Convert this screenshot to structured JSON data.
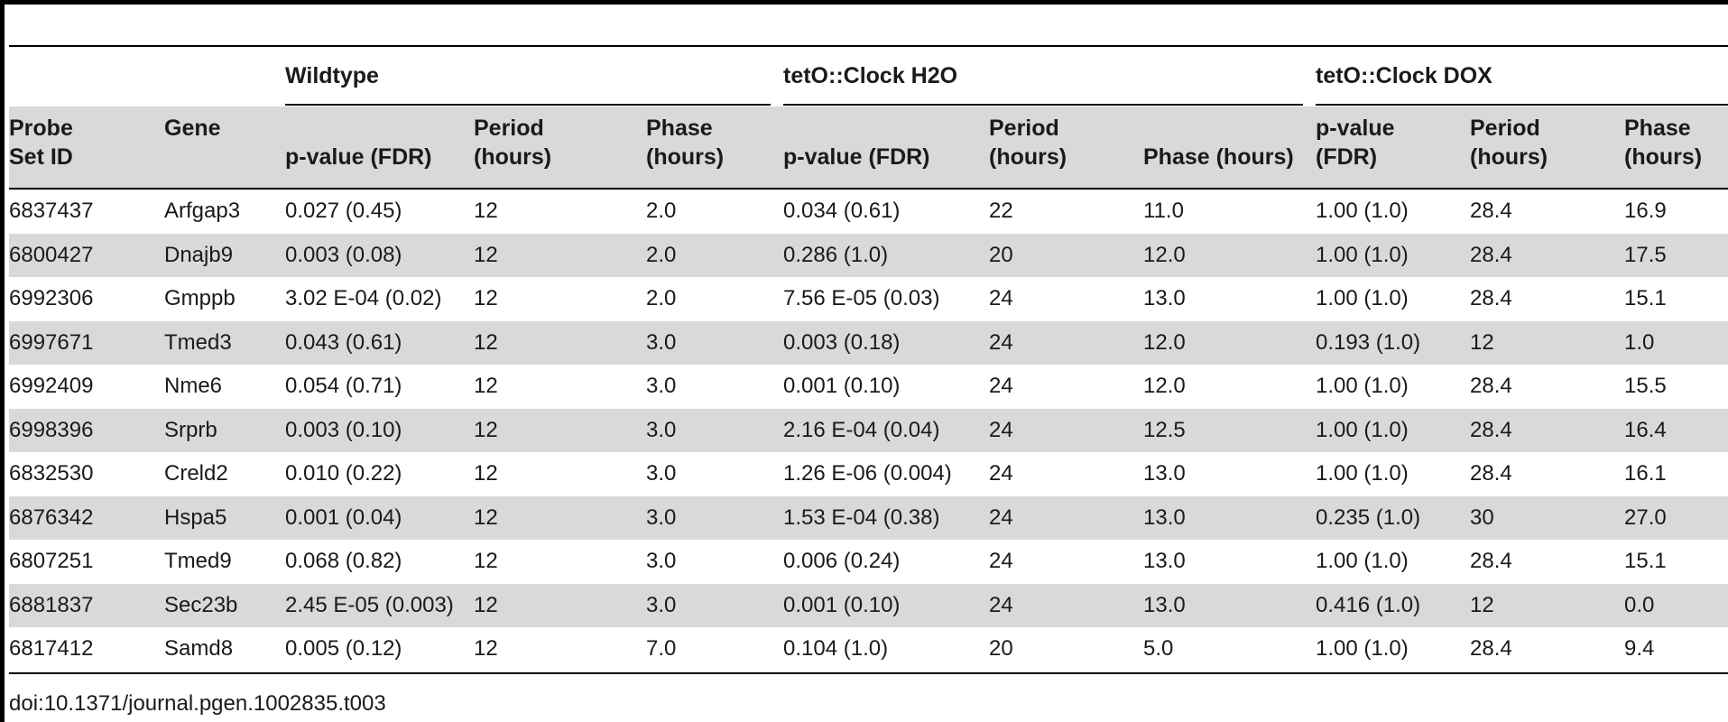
{
  "table": {
    "groups": [
      {
        "label": "Wildtype"
      },
      {
        "label": "tetO::Clock H2O"
      },
      {
        "label": "tetO::Clock DOX"
      }
    ],
    "columns": [
      "Probe\nSet ID",
      "Gene",
      "p-value (FDR)",
      "Period\n(hours)",
      "Phase\n(hours)",
      "p-value (FDR)",
      "Period\n(hours)",
      "Phase (hours)",
      "p-value\n(FDR)",
      "Period\n(hours)",
      "Phase\n(hours)"
    ],
    "rows": [
      [
        "6837437",
        "Arfgap3",
        "0.027 (0.45)",
        "12",
        "2.0",
        "0.034 (0.61)",
        "22",
        "11.0",
        "1.00 (1.0)",
        "28.4",
        "16.9"
      ],
      [
        "6800427",
        "Dnajb9",
        "0.003 (0.08)",
        "12",
        "2.0",
        "0.286 (1.0)",
        "20",
        "12.0",
        "1.00 (1.0)",
        "28.4",
        "17.5"
      ],
      [
        "6992306",
        "Gmppb",
        "3.02 E-04 (0.02)",
        "12",
        "2.0",
        "7.56 E-05 (0.03)",
        "24",
        "13.0",
        "1.00 (1.0)",
        "28.4",
        "15.1"
      ],
      [
        "6997671",
        "Tmed3",
        "0.043 (0.61)",
        "12",
        "3.0",
        "0.003 (0.18)",
        "24",
        "12.0",
        "0.193 (1.0)",
        "12",
        "1.0"
      ],
      [
        "6992409",
        "Nme6",
        "0.054 (0.71)",
        "12",
        "3.0",
        "0.001 (0.10)",
        "24",
        "12.0",
        "1.00 (1.0)",
        "28.4",
        "15.5"
      ],
      [
        "6998396",
        "Srprb",
        "0.003 (0.10)",
        "12",
        "3.0",
        "2.16 E-04 (0.04)",
        "24",
        "12.5",
        "1.00 (1.0)",
        "28.4",
        "16.4"
      ],
      [
        "6832530",
        "Creld2",
        "0.010 (0.22)",
        "12",
        "3.0",
        "1.26 E-06 (0.004)",
        "24",
        "13.0",
        "1.00 (1.0)",
        "28.4",
        "16.1"
      ],
      [
        "6876342",
        "Hspa5",
        "0.001 (0.04)",
        "12",
        "3.0",
        "1.53 E-04 (0.38)",
        "24",
        "13.0",
        "0.235 (1.0)",
        "30",
        "27.0"
      ],
      [
        "6807251",
        "Tmed9",
        "0.068 (0.82)",
        "12",
        "3.0",
        "0.006 (0.24)",
        "24",
        "13.0",
        "1.00 (1.0)",
        "28.4",
        "15.1"
      ],
      [
        "6881837",
        "Sec23b",
        "2.45 E-05 (0.003)",
        "12",
        "3.0",
        "0.001 (0.10)",
        "24",
        "13.0",
        "0.416 (1.0)",
        "12",
        "0.0"
      ],
      [
        "6817412",
        "Samd8",
        "0.005 (0.12)",
        "12",
        "7.0",
        "0.104 (1.0)",
        "20",
        "5.0",
        "1.00 (1.0)",
        "28.4",
        "9.4"
      ]
    ]
  },
  "footnote": "doi:10.1371/journal.pgen.1002835.t003"
}
